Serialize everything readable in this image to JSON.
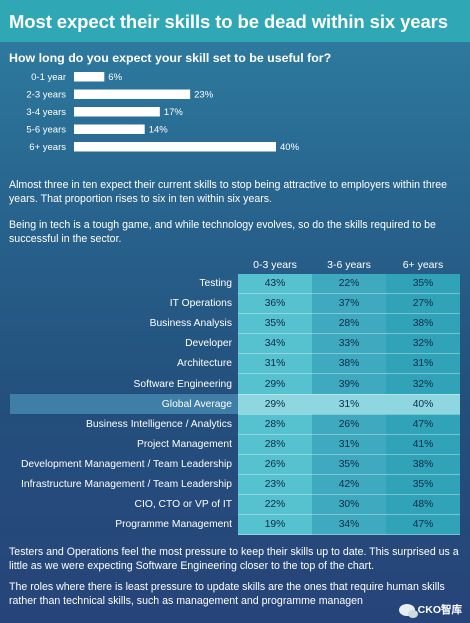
{
  "header": {
    "title": "Most expect their skills to be dead within six years"
  },
  "question": "How long do you expect your skill set to be useful for?",
  "chart_data": [
    {
      "type": "bar",
      "orientation": "horizontal",
      "categories": [
        "0-1 year",
        "2-3 years",
        "3-4 years",
        "5-6 years",
        "6+ years"
      ],
      "values": [
        6,
        23,
        17,
        14,
        40
      ],
      "value_suffix": "%",
      "xlim": [
        0,
        40
      ]
    },
    {
      "type": "table",
      "columns": [
        "0-3 years",
        "3-6 years",
        "6+ years"
      ],
      "rows": [
        {
          "role": "Testing",
          "values": [
            "43%",
            "22%",
            "35%"
          ]
        },
        {
          "role": "IT Operations",
          "values": [
            "36%",
            "37%",
            "27%"
          ]
        },
        {
          "role": "Business Analysis",
          "values": [
            "35%",
            "28%",
            "38%"
          ]
        },
        {
          "role": "Developer",
          "values": [
            "34%",
            "33%",
            "32%"
          ]
        },
        {
          "role": "Architecture",
          "values": [
            "31%",
            "38%",
            "31%"
          ]
        },
        {
          "role": "Software Engineering",
          "values": [
            "29%",
            "39%",
            "32%"
          ]
        },
        {
          "role": "Global Average",
          "values": [
            "29%",
            "31%",
            "40%"
          ],
          "highlight": true
        },
        {
          "role": "Business Intelligence / Analytics",
          "values": [
            "28%",
            "26%",
            "47%"
          ]
        },
        {
          "role": "Project Management",
          "values": [
            "28%",
            "31%",
            "41%"
          ]
        },
        {
          "role": "Development Management / Team Leadership",
          "values": [
            "26%",
            "35%",
            "38%"
          ]
        },
        {
          "role": "Infrastructure Management / Team Leadership",
          "values": [
            "23%",
            "42%",
            "35%"
          ]
        },
        {
          "role": "CIO, CTO or VP of IT",
          "values": [
            "22%",
            "30%",
            "48%"
          ]
        },
        {
          "role": "Programme Management",
          "values": [
            "19%",
            "34%",
            "47%"
          ]
        }
      ]
    }
  ],
  "paragraphs": {
    "p1": "Almost three in ten expect their current skills to stop being attractive to employers within three years. That proportion rises to six in ten within six years.",
    "p2": "Being in tech is a tough game, and while technology evolves, so do the skills required to be successful in the sector.",
    "p3": "Testers and Operations feel the most pressure to keep their skills up to date. This surprised us a little as we were expecting Software Engineering closer to the top of the chart.",
    "p4": "The roles where there is least pressure to update skills are the ones that require human skills rather than technical skills, such as management and programme managen"
  },
  "watermark": {
    "text": "CKO智库",
    "icon": "wechat-icon"
  },
  "colors": {
    "header": "#2fa7b4",
    "bar": "#ffffff",
    "col0": "#56c1cf",
    "col1": "#3fa9c0",
    "col2": "#31a3b8",
    "highlight": "#8fd7e0"
  }
}
